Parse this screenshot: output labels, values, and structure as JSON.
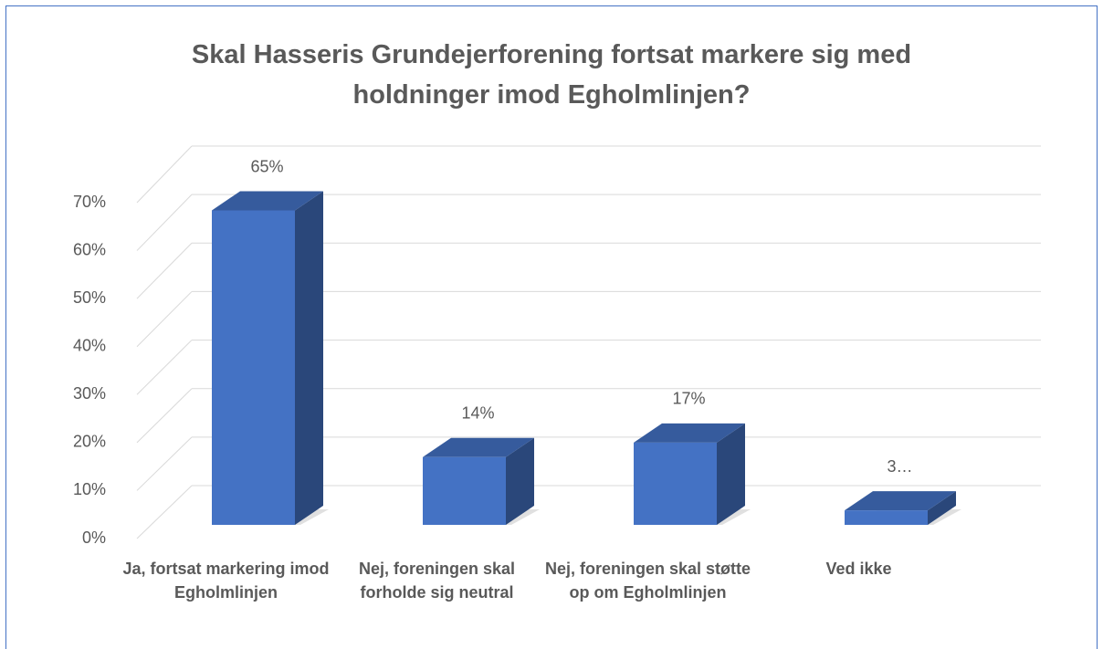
{
  "chart_data": {
    "type": "bar3d",
    "title": "Skal Hasseris Grundejerforening fortsat markere sig med holdninger imod Egholmlinjen?",
    "categories": [
      "Ja, fortsat markering imod Egholmlinjen",
      "Nej, foreningen skal forholde sig neutral",
      "Nej, foreningen skal støtte op om Egholmlinjen",
      "Ved ikke"
    ],
    "values": [
      65,
      14,
      17,
      3
    ],
    "value_labels": [
      "65%",
      "14%",
      "17%",
      "3…"
    ],
    "color": "#4472c4",
    "ylim": [
      0,
      70
    ],
    "yticks": [
      {
        "value": 0,
        "label": "0%"
      },
      {
        "value": 10,
        "label": "10%"
      },
      {
        "value": 20,
        "label": "20%"
      },
      {
        "value": 30,
        "label": "30%"
      },
      {
        "value": 40,
        "label": "40%"
      },
      {
        "value": 50,
        "label": "50%"
      },
      {
        "value": 60,
        "label": "60%"
      },
      {
        "value": 70,
        "label": "70%"
      }
    ],
    "grid": true
  }
}
